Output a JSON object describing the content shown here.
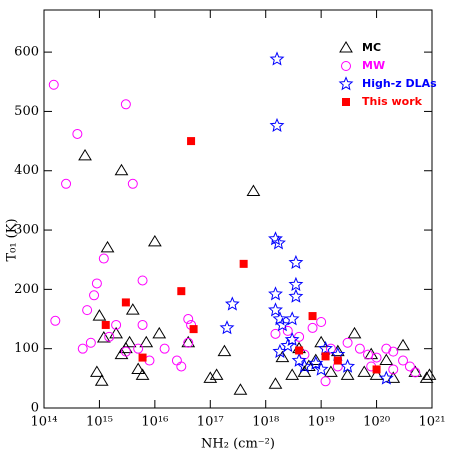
{
  "chart_data": {
    "type": "scatter",
    "x_label": "NH₂ (cm⁻²)",
    "y_label": "T₀₁ (K)",
    "xlim": [
      100000000000000.0,
      1e+21
    ],
    "log_x": true,
    "ylim": [
      0,
      671
    ],
    "xticks": [
      {
        "value": 100000000000000.0,
        "label": "10¹⁴"
      },
      {
        "value": 1000000000000000.0,
        "label": "10¹⁵"
      },
      {
        "value": 1e+16,
        "label": "10¹⁶"
      },
      {
        "value": 1e+17,
        "label": "10¹⁷"
      },
      {
        "value": 1e+18,
        "label": "10¹⁸"
      },
      {
        "value": 1e+19,
        "label": "10¹⁹"
      },
      {
        "value": 1e+20,
        "label": "10²⁰"
      },
      {
        "value": 1e+21,
        "label": "10²¹"
      }
    ],
    "yticks": [
      0,
      100,
      200,
      300,
      400,
      500,
      600
    ],
    "legend": "upper right",
    "series": [
      {
        "name": "MC",
        "color": "#000000",
        "marker": "triangle",
        "x": [
          550000000000000.0,
          2500000000000000.0,
          1400000000000000.0,
          1e+16,
          6e+17,
          1200000000000000.0,
          1000000000000000.0,
          2000000000000000.0,
          3000000000000000.0,
          3500000000000000.0,
          4000000000000000.0,
          5000000000000000.0,
          6000000000000000.0,
          900000000000000.0,
          1100000000000000.0,
          7000000000000000.0,
          1.2e+16,
          4e+16,
          1e+17,
          1.3e+17,
          1.8e+17,
          3.5e+17,
          1.5e+18,
          2e+18,
          3e+18,
          4e+18,
          5e+18,
          6e+18,
          8e+18,
          1e+19,
          1.5e+19,
          2e+19,
          3e+19,
          4e+19,
          6e+19,
          8e+19,
          1e+20,
          1.5e+20,
          2e+20,
          3e+20,
          5e+20,
          8e+20,
          9e+20,
          2500000000000000.0
        ],
        "values": [
          425,
          400,
          270,
          280,
          365,
          118,
          155,
          125,
          100,
          110,
          165,
          65,
          55,
          60,
          45,
          110,
          125,
          110,
          50,
          55,
          95,
          30,
          40,
          85,
          55,
          100,
          60,
          70,
          80,
          110,
          60,
          95,
          55,
          125,
          60,
          90,
          55,
          80,
          50,
          105,
          60,
          50,
          55,
          90
        ]
      },
      {
        "name": "MW",
        "color": "#ff00ff",
        "marker": "circle",
        "x": [
          150000000000000.0,
          250000000000000.0,
          400000000000000.0,
          3000000000000000.0,
          4000000000000000.0,
          1200000000000000.0,
          900000000000000.0,
          800000000000000.0,
          600000000000000.0,
          160000000000000.0,
          500000000000000.0,
          700000000000000.0,
          1500000000000000.0,
          2000000000000000.0,
          3000000000000000.0,
          6000000000000000.0,
          6000000000000000.0,
          5000000000000000.0,
          8000000000000000.0,
          1.5e+16,
          2.5e+16,
          3e+16,
          4e+16,
          4.5e+16,
          4e+16,
          1.5e+18,
          2.5e+18,
          4e+18,
          5e+18,
          7e+18,
          1e+19,
          1.5e+19,
          2e+19,
          3e+19,
          5e+19,
          7e+19,
          1e+20,
          1.5e+20,
          2e+20,
          3e+20,
          4e+20,
          5e+20,
          1.2e+19,
          8e+19,
          2e+20
        ],
        "values": [
          545,
          378,
          462,
          512,
          378,
          252,
          210,
          190,
          165,
          147,
          100,
          110,
          120,
          140,
          95,
          215,
          140,
          100,
          80,
          100,
          80,
          70,
          150,
          140,
          110,
          125,
          130,
          120,
          90,
          135,
          145,
          100,
          70,
          110,
          100,
          90,
          85,
          100,
          95,
          80,
          70,
          60,
          45,
          70,
          65
        ]
      },
      {
        "name": "High-z DLAs",
        "color": "#0000ff",
        "marker": "star",
        "x": [
          1.6e+18,
          1.6e+18,
          1.5e+18,
          1.7e+18,
          3.5e+18,
          1.5e+18,
          3.5e+18,
          3.5e+18,
          2e+17,
          2.5e+17,
          1.5e+18,
          1.8e+18,
          2e+18,
          3e+18,
          3e+18,
          1.8e+18,
          2.5e+18,
          4e+18,
          5e+18,
          8e+18,
          1e+19,
          2e+19,
          3e+19,
          1.5e+20,
          1.2e+19
        ],
        "values": [
          588,
          476,
          285,
          278,
          245,
          192,
          208,
          188,
          135,
          175,
          165,
          150,
          140,
          150,
          115,
          95,
          105,
          80,
          70,
          75,
          65,
          90,
          70,
          50,
          100
        ]
      },
      {
        "name": "This work",
        "color": "#ff0000",
        "marker": "square",
        "x": [
          4.5e+16,
          4e+17,
          3000000000000000.0,
          3e+16,
          1300000000000000.0,
          5e+16,
          6000000000000000.0,
          4e+18,
          7e+18,
          1.2e+19,
          2e+19,
          1e+20
        ],
        "values": [
          450,
          243,
          178,
          197,
          140,
          133,
          85,
          97,
          155,
          87,
          80,
          65
        ]
      }
    ]
  }
}
